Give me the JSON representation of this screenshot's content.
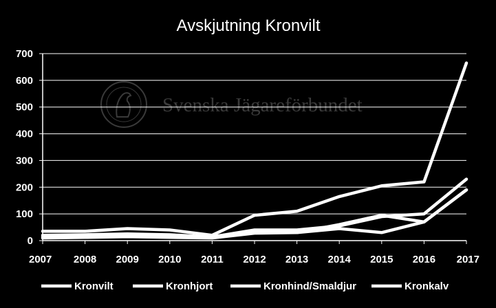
{
  "chart_data": {
    "type": "line",
    "title": "Avskjutning Kronvilt",
    "watermark": "Svenska Jägareförbundet",
    "x": [
      "2007",
      "2008",
      "2009",
      "2010",
      "2011",
      "2012",
      "2013",
      "2014",
      "2015",
      "2016",
      "2017"
    ],
    "ylim": [
      0,
      700
    ],
    "yticks": [
      "0",
      "100",
      "200",
      "300",
      "400",
      "500",
      "600",
      "700"
    ],
    "grid": true,
    "legend_position": "bottom",
    "line_color": "#ffffff",
    "background": "#000000",
    "series": [
      {
        "name": "Kronvilt",
        "values": [
          35,
          35,
          45,
          40,
          20,
          95,
          110,
          165,
          205,
          220,
          665
        ]
      },
      {
        "name": "Kronhjort",
        "values": [
          10,
          12,
          15,
          12,
          10,
          28,
          30,
          45,
          30,
          70,
          190
        ]
      },
      {
        "name": "Kronhind/Smaldjur",
        "values": [
          15,
          15,
          20,
          17,
          15,
          30,
          30,
          60,
          95,
          70,
          190
        ]
      },
      {
        "name": "Kronkalv",
        "values": [
          20,
          22,
          25,
          22,
          14,
          40,
          40,
          55,
          90,
          100,
          230
        ]
      }
    ]
  }
}
